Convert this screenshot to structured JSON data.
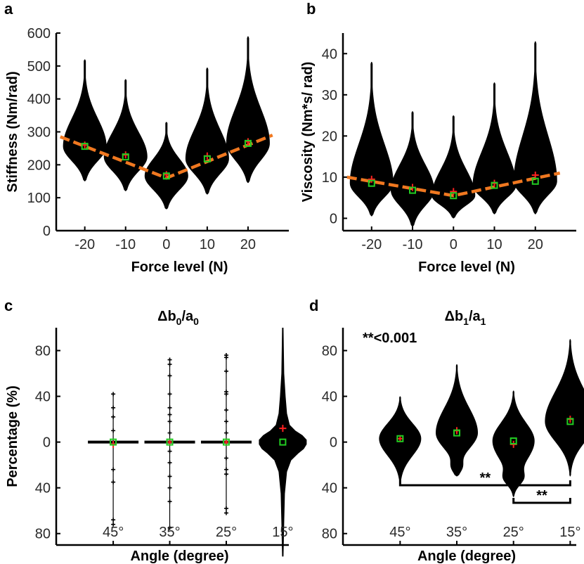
{
  "colors": {
    "violin": "#000000",
    "median_marker": "#22cc22",
    "mean_marker": "#ff2020",
    "fit_line": "#f07820",
    "axis": "#000000",
    "tick_text": "#2a2a2a"
  },
  "chart_data": [
    {
      "panel": "a",
      "type": "violin",
      "categories": [
        "-20",
        "-10",
        "0",
        "10",
        "20"
      ],
      "xlabel": "Force level (N)",
      "ylabel": "Stiffness (Nm/rad)",
      "ylim": [
        0,
        600
      ],
      "yticks": [
        "0",
        "100",
        "200",
        "300",
        "400",
        "500",
        "600"
      ],
      "series": [
        {
          "medians": [
            256,
            224,
            166,
            218,
            265
          ],
          "means": [
            260,
            230,
            170,
            227,
            270
          ],
          "min": [
            150,
            120,
            65,
            110,
            145
          ],
          "max": [
            520,
            460,
            330,
            495,
            590
          ]
        }
      ],
      "fit_line": {
        "x": [
          -26,
          0,
          26
        ],
        "y": [
          285,
          160,
          290
        ]
      }
    },
    {
      "panel": "b",
      "type": "violin",
      "categories": [
        "-20",
        "-10",
        "0",
        "10",
        "20"
      ],
      "xlabel": "Force level (N)",
      "ylabel": "Viscosity (Nm*s/ rad)",
      "ylim": [
        -3,
        45
      ],
      "yticks": [
        "0",
        "10",
        "20",
        "30",
        "40"
      ],
      "series": [
        {
          "medians": [
            8.5,
            6.8,
            5.5,
            8,
            9
          ],
          "means": [
            9.5,
            7.5,
            6.5,
            8.5,
            10.5
          ],
          "min": [
            0.5,
            -2,
            0,
            1,
            1
          ],
          "max": [
            38,
            26,
            25,
            33,
            43
          ]
        }
      ],
      "fit_line": {
        "x": [
          -26,
          0,
          26
        ],
        "y": [
          10,
          5.5,
          11
        ]
      }
    },
    {
      "panel": "c",
      "type": "violin",
      "title": "Δb0/a0",
      "title_main": "Δb",
      "title_sub1": "0",
      "title_mid": "/a",
      "title_sub2": "0",
      "categories": [
        "45°",
        "35°",
        "25°",
        "15°"
      ],
      "xlabel": "Angle (degree)",
      "ylabel": "Percentage (%)",
      "ylim": [
        -90,
        100
      ],
      "yticks": [
        "80",
        "40",
        "0",
        "40",
        "80"
      ],
      "series": [
        {
          "medians": [
            0,
            0,
            0,
            0
          ],
          "means": [
            -2,
            0,
            0,
            12
          ],
          "min": [
            -72,
            -75,
            -62,
            -100
          ],
          "max": [
            42,
            72,
            76,
            100
          ]
        }
      ]
    },
    {
      "panel": "d",
      "type": "violin",
      "title": "Δb1/a1",
      "title_main": "Δb",
      "title_sub1": "1",
      "title_mid": "/a",
      "title_sub2": "1",
      "annotation": "**<0.001",
      "categories": [
        "45°",
        "35°",
        "25°",
        "15°"
      ],
      "xlabel": "Angle (degree)",
      "ylabel": "",
      "ylim": [
        -90,
        100
      ],
      "yticks": [
        "80",
        "40",
        "0",
        "40",
        "80"
      ],
      "series": [
        {
          "medians": [
            3,
            8,
            1,
            18
          ],
          "means": [
            3,
            10,
            -2,
            20
          ],
          "min": [
            -38,
            -30,
            -48,
            -30
          ],
          "max": [
            40,
            68,
            45,
            90
          ]
        }
      ],
      "significance": [
        {
          "from": "45°",
          "to": "15°",
          "label": "**"
        },
        {
          "from": "25°",
          "to": "15°",
          "label": "**"
        }
      ]
    }
  ]
}
